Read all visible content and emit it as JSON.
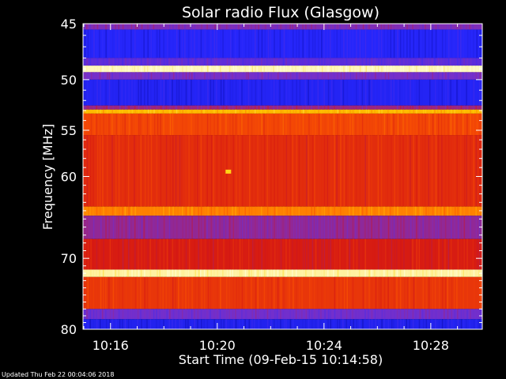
{
  "chart_data": {
    "type": "heatmap",
    "title": "Solar radio Flux (Glasgow)",
    "xlabel": "Start Time (09-Feb-15 10:14:58)",
    "ylabel": "Frequency [MHz]",
    "x_ticks": [
      "10:16",
      "10:20",
      "10:24",
      "10:28"
    ],
    "x_tick_minutes": [
      16,
      20,
      24,
      28
    ],
    "xlim_minutes": [
      14.97,
      29.93
    ],
    "y_ticks": [
      45,
      50,
      55,
      60,
      70,
      80
    ],
    "ylim": [
      45,
      80
    ],
    "y_scale": "log",
    "colormap": [
      "#00008c",
      "#2828ff",
      "#7830c8",
      "#d21414",
      "#ff5a00",
      "#ffd200",
      "#ffffe6"
    ],
    "frequency_bands": [
      {
        "from": 45.0,
        "to": 45.5,
        "level": 0.35
      },
      {
        "from": 45.5,
        "to": 48.0,
        "level": 0.16
      },
      {
        "from": 48.0,
        "to": 48.7,
        "level": 0.28
      },
      {
        "from": 48.7,
        "to": 49.3,
        "level": 0.97
      },
      {
        "from": 49.3,
        "to": 50.0,
        "level": 0.33
      },
      {
        "from": 50.0,
        "to": 52.5,
        "level": 0.15
      },
      {
        "from": 52.5,
        "to": 52.9,
        "level": 0.4
      },
      {
        "from": 52.9,
        "to": 53.3,
        "level": 0.8
      },
      {
        "from": 53.3,
        "to": 55.5,
        "level": 0.62
      },
      {
        "from": 55.5,
        "to": 63.5,
        "level": 0.56
      },
      {
        "from": 63.5,
        "to": 64.6,
        "level": 0.72
      },
      {
        "from": 64.6,
        "to": 67.5,
        "level": 0.38
      },
      {
        "from": 67.5,
        "to": 71.5,
        "level": 0.52
      },
      {
        "from": 71.5,
        "to": 72.5,
        "level": 0.95
      },
      {
        "from": 72.5,
        "to": 77.0,
        "level": 0.58
      },
      {
        "from": 77.0,
        "to": 78.5,
        "level": 0.32
      },
      {
        "from": 78.5,
        "to": 80.0,
        "level": 0.14
      }
    ],
    "hot_spots": [
      {
        "time_minutes": 20.4,
        "freq": 59.5,
        "level": 0.85
      }
    ]
  },
  "footer": "Updated Thu Feb 22 00:04:06 2018"
}
